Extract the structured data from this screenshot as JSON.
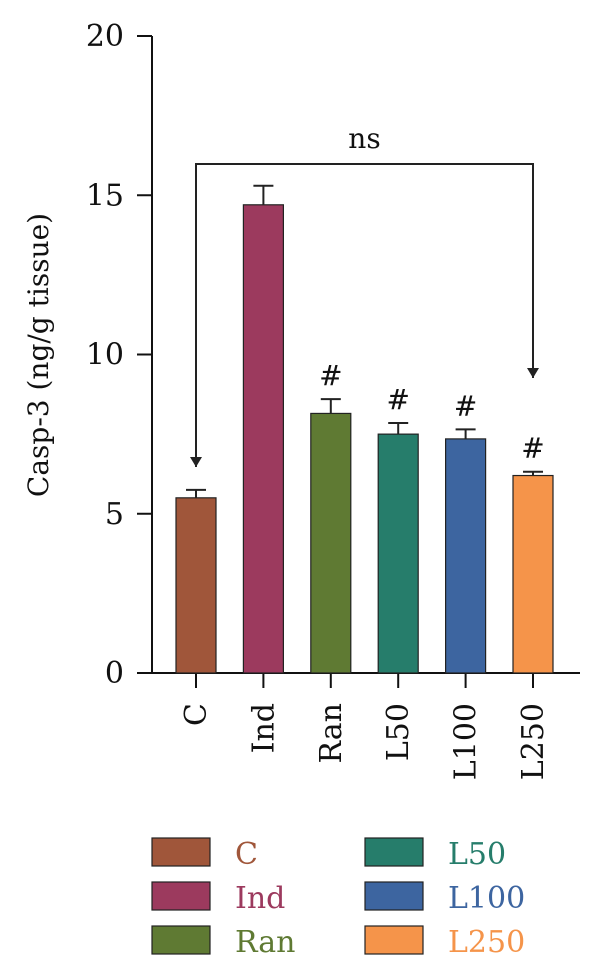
{
  "chart_data": {
    "type": "bar",
    "title": "",
    "xlabel": "",
    "ylabel": "Casp-3 (ng/g tissue)",
    "ylim": [
      0,
      20
    ],
    "yticks": [
      0,
      5,
      10,
      15,
      20
    ],
    "grid": false,
    "categories": [
      "C",
      "Ind",
      "Ran",
      "L50",
      "L100",
      "L250"
    ],
    "values": [
      5.5,
      14.7,
      8.15,
      7.5,
      7.35,
      6.2
    ],
    "errors": [
      0.25,
      0.6,
      0.45,
      0.35,
      0.3,
      0.12
    ],
    "colors": [
      "#a0563a",
      "#9c3a5e",
      "#5f7a33",
      "#267d6b",
      "#3d65a0",
      "#f5944a"
    ],
    "annotations": [
      "",
      "",
      "#",
      "#",
      "#",
      "#"
    ],
    "comparison": {
      "from": "C",
      "to": "L250",
      "label": "ns"
    },
    "legend": {
      "placement": "bottom",
      "entries": [
        "C",
        "Ind",
        "Ran",
        "L50",
        "L100",
        "L250"
      ]
    }
  }
}
